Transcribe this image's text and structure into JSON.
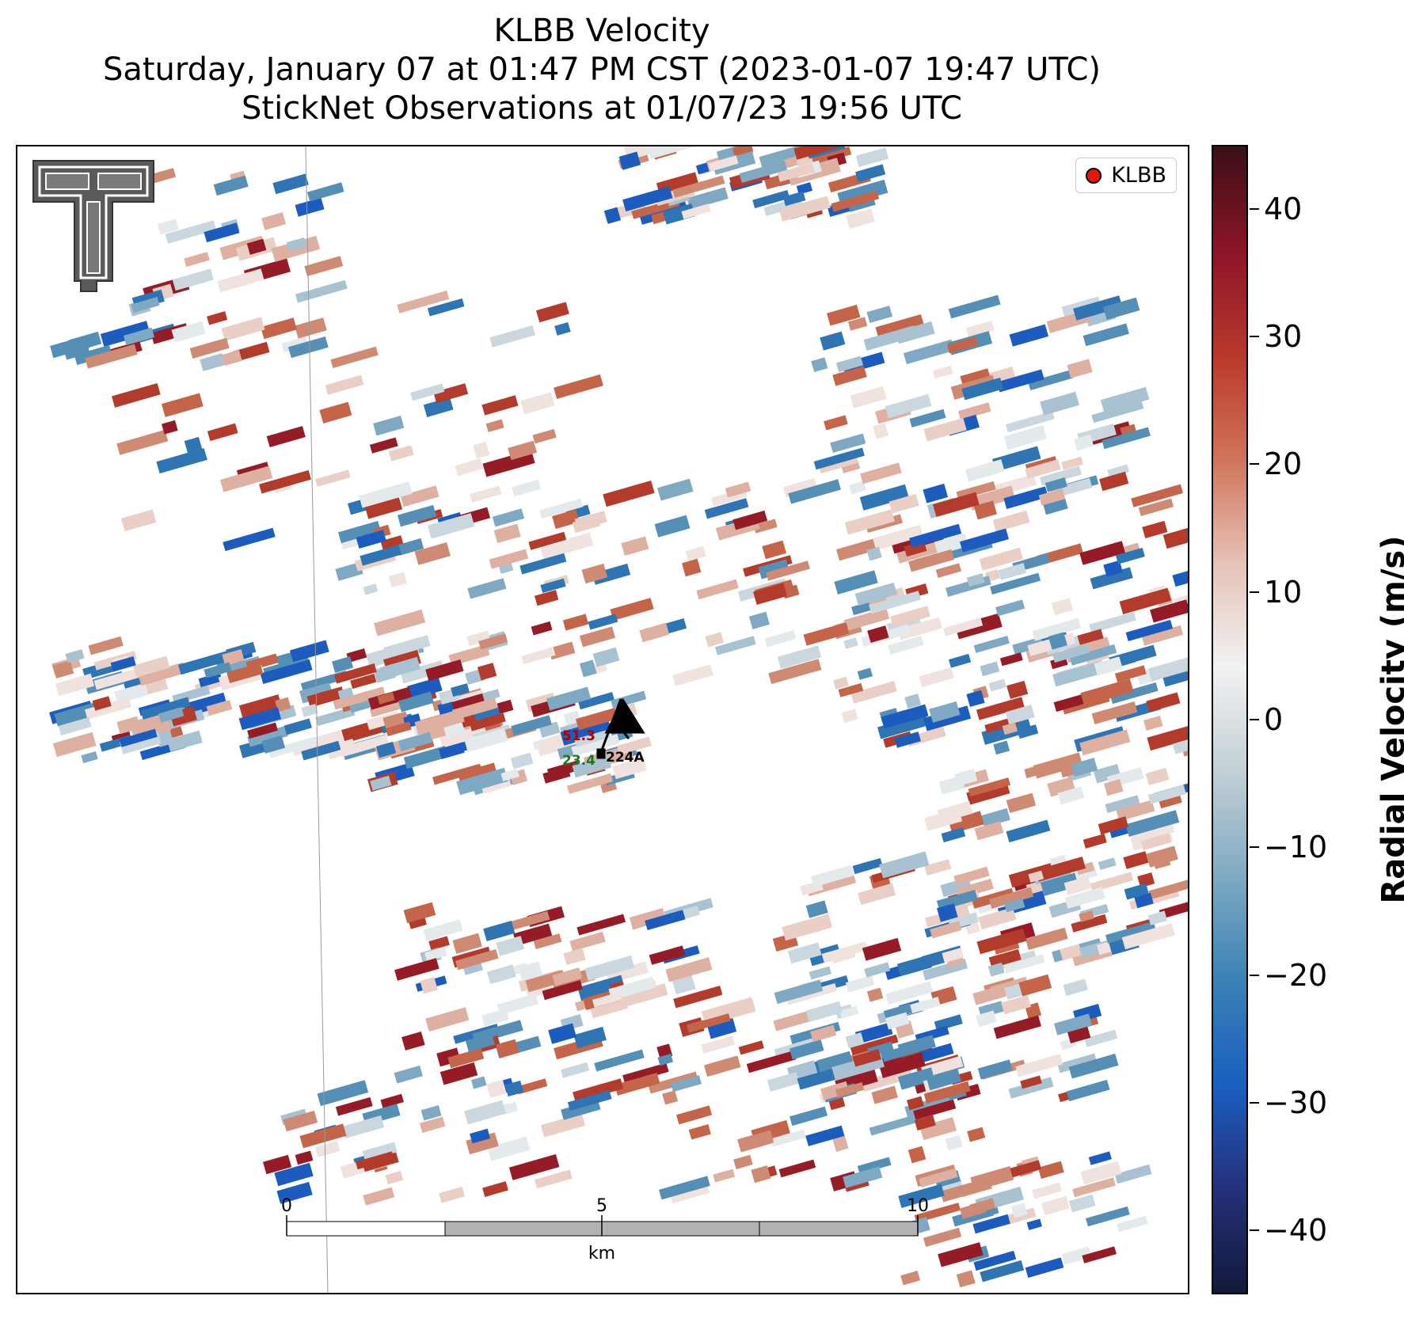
{
  "title": {
    "line1": "KLBB Velocity",
    "line2": "Saturday, January 07 at 01:47 PM CST (2023-01-07 19:47 UTC)",
    "line3": "StickNet Observations at 01/07/23 19:56 UTC"
  },
  "legend": {
    "label": "KLBB",
    "marker_color": "#e8150f"
  },
  "colorbar": {
    "label": "Radial Velocity (m/s)",
    "ticks": [
      "40",
      "30",
      "20",
      "10",
      "0",
      "−10",
      "−20",
      "−30",
      "−40"
    ],
    "range": [
      -45,
      45
    ],
    "colors": [
      "#3b0f16",
      "#8c1427",
      "#b8382a",
      "#d0745a",
      "#e6c2b8",
      "#f2f2f2",
      "#c2cfd6",
      "#7faac2",
      "#3a82b5",
      "#1a5fbf",
      "#25307a",
      "#121a3a"
    ]
  },
  "station": {
    "id": "224A",
    "temperature": "51.3",
    "dewpoint": "23.4",
    "temperature_color": "#b00000",
    "dewpoint_color": "#1a7a1a"
  },
  "scale_bar": {
    "labels": [
      "0",
      "5",
      "10"
    ],
    "unit": "km"
  },
  "logo": {
    "name": "texas-tech-double-t-logo"
  }
}
